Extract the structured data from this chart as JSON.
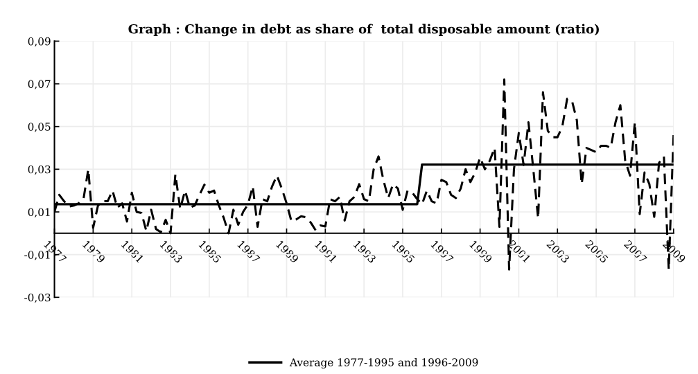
{
  "chart_data": {
    "type": "line",
    "title": "Graph : Change in debt as share of  total disposable amount (ratio)",
    "categories": [
      "1977",
      null,
      null,
      null,
      null,
      null,
      null,
      null,
      "1979",
      null,
      null,
      null,
      null,
      null,
      null,
      null,
      "1981",
      null,
      null,
      null,
      null,
      null,
      null,
      null,
      "1983",
      null,
      null,
      null,
      null,
      null,
      null,
      null,
      "1985",
      null,
      null,
      null,
      null,
      null,
      null,
      null,
      "1987",
      null,
      null,
      null,
      null,
      null,
      null,
      null,
      "1989",
      null,
      null,
      null,
      null,
      null,
      null,
      null,
      "1991",
      null,
      null,
      null,
      null,
      null,
      null,
      null,
      "1993",
      null,
      null,
      null,
      null,
      null,
      null,
      null,
      "1995",
      null,
      null,
      null,
      null,
      null,
      null,
      null,
      "1997",
      null,
      null,
      null,
      null,
      null,
      null,
      null,
      "1999",
      null,
      null,
      null,
      null,
      null,
      null,
      null,
      "2001",
      null,
      null,
      null,
      null,
      null,
      null,
      null,
      "2003",
      null,
      null,
      null,
      null,
      null,
      null,
      null,
      "2005",
      null,
      null,
      null,
      null,
      null,
      null,
      null,
      "2007",
      null,
      null,
      null,
      null,
      null,
      null,
      null,
      "2009"
    ],
    "series": [
      {
        "color": "#000000",
        "line_style": "dashed",
        "values": [
          0.01,
          0.018,
          0.015,
          0.0125,
          0.013,
          0.014,
          0.016,
          0.03,
          0.0026,
          0.013,
          0.015,
          0.015,
          0.02,
          0.012,
          0.014,
          0.0055,
          0.019,
          0.01,
          0.0095,
          0.001,
          0.011,
          0.002,
          0.0005,
          0.0063,
          0.0,
          0.0276,
          0.0114,
          0.02,
          0.012,
          0.013,
          0.018,
          0.0228,
          0.019,
          0.02,
          0.013,
          0.0072,
          0.0,
          0.011,
          0.004,
          0.01,
          0.0135,
          0.022,
          0.003,
          0.016,
          0.015,
          0.022,
          0.027,
          0.021,
          0.014,
          0.0056,
          0.0065,
          0.008,
          0.0075,
          0.005,
          0.0014,
          0.0037,
          0.0032,
          0.016,
          0.015,
          0.017,
          0.006,
          0.015,
          0.017,
          0.023,
          0.016,
          0.015,
          0.03,
          0.036,
          0.025,
          0.0165,
          0.023,
          0.021,
          0.011,
          0.02,
          0.019,
          0.016,
          0.0136,
          0.02,
          0.015,
          0.014,
          0.025,
          0.024,
          0.018,
          0.0165,
          0.021,
          0.03,
          0.024,
          0.0285,
          0.0355,
          0.03,
          0.034,
          0.04,
          0.003,
          0.072,
          -0.017,
          0.03,
          0.047,
          0.032,
          0.052,
          0.03,
          0.007,
          0.066,
          0.048,
          0.045,
          0.045,
          0.05,
          0.063,
          0.062,
          0.053,
          0.023,
          0.04,
          0.039,
          0.038,
          0.041,
          0.041,
          0.04,
          0.052,
          0.06,
          0.034,
          0.027,
          0.052,
          0.009,
          0.0285,
          0.023,
          0.0077,
          0.033,
          0.036,
          -0.017,
          0.046
        ]
      },
      {
        "name": "Average 1977-1995 and 1996-2009",
        "color": "#000000",
        "line_style": "solid",
        "values": [
          0.0136,
          0.0136,
          0.0136,
          0.0136,
          0.0136,
          0.0136,
          0.0136,
          0.0136,
          0.0136,
          0.0136,
          0.0136,
          0.0136,
          0.0136,
          0.0136,
          0.0136,
          0.0136,
          0.0136,
          0.0136,
          0.0136,
          0.0136,
          0.0136,
          0.0136,
          0.0136,
          0.0136,
          0.0136,
          0.0136,
          0.0136,
          0.0136,
          0.0136,
          0.0136,
          0.0136,
          0.0136,
          0.0136,
          0.0136,
          0.0136,
          0.0136,
          0.0136,
          0.0136,
          0.0136,
          0.0136,
          0.0136,
          0.0136,
          0.0136,
          0.0136,
          0.0136,
          0.0136,
          0.0136,
          0.0136,
          0.0136,
          0.0136,
          0.0136,
          0.0136,
          0.0136,
          0.0136,
          0.0136,
          0.0136,
          0.0136,
          0.0136,
          0.0136,
          0.0136,
          0.0136,
          0.0136,
          0.0136,
          0.0136,
          0.0136,
          0.0136,
          0.0136,
          0.0136,
          0.0136,
          0.0136,
          0.0136,
          0.0136,
          0.0136,
          0.0136,
          0.0136,
          0.0136,
          0.0322,
          0.0322,
          0.0322,
          0.0322,
          0.0322,
          0.0322,
          0.0322,
          0.0322,
          0.0322,
          0.0322,
          0.0322,
          0.0322,
          0.0322,
          0.0322,
          0.0322,
          0.0322,
          0.0322,
          0.0322,
          0.0322,
          0.0322,
          0.0322,
          0.0322,
          0.0322,
          0.0322,
          0.0322,
          0.0322,
          0.0322,
          0.0322,
          0.0322,
          0.0322,
          0.0322,
          0.0322,
          0.0322,
          0.0322,
          0.0322,
          0.0322,
          0.0322,
          0.0322,
          0.0322,
          0.0322,
          0.0322,
          0.0322,
          0.0322,
          0.0322,
          0.0322,
          0.0322,
          0.0322,
          0.0322,
          0.0322,
          0.0322,
          0.0322,
          0.0322,
          0.0322
        ]
      }
    ],
    "ylim": [
      -0.03,
      0.09
    ],
    "yticks": [
      {
        "value": -0.03,
        "label": "-0,03"
      },
      {
        "value": -0.01,
        "label": "-0,01"
      },
      {
        "value": 0.01,
        "label": "0,01"
      },
      {
        "value": 0.03,
        "label": "0,03"
      },
      {
        "value": 0.05,
        "label": "0,05"
      },
      {
        "value": 0.07,
        "label": "0,07"
      },
      {
        "value": 0.09,
        "label": "0,09"
      }
    ],
    "grid": true,
    "legend": "bottom",
    "marker": "none"
  }
}
